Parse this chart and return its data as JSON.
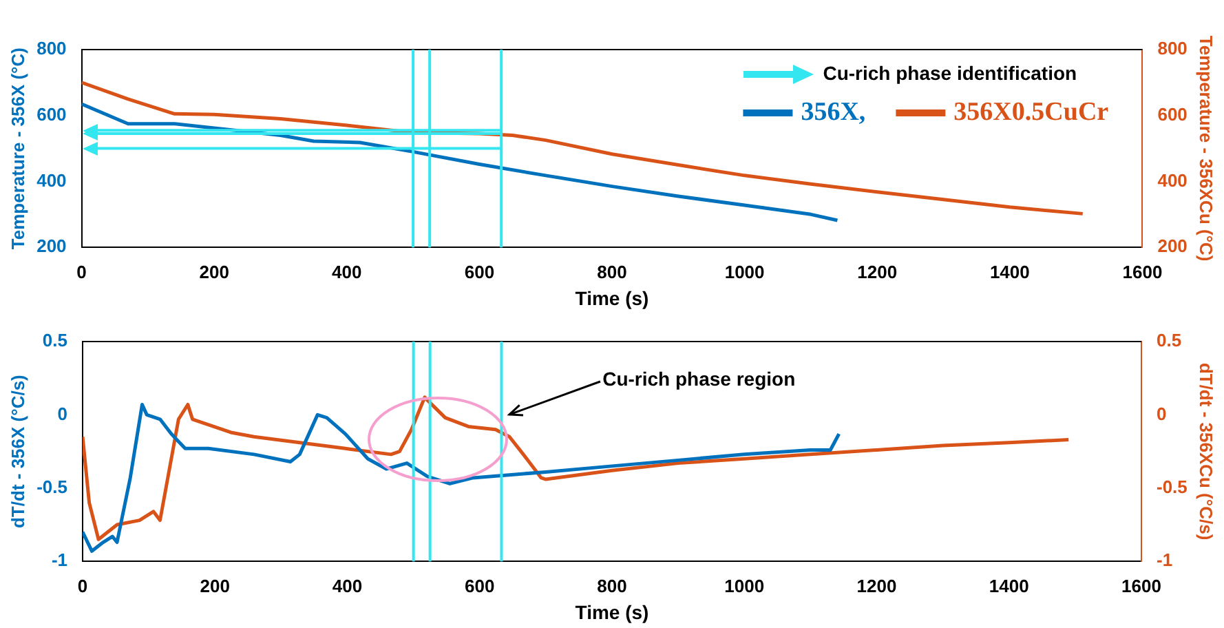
{
  "chart_data": [
    {
      "type": "line",
      "xlabel": "Time (s)",
      "ylabel": "Temperature - 356X (°C)",
      "y2label": "Temperature - 356XCu (°C)",
      "xlim": [
        0,
        1600
      ],
      "xticks": [
        0,
        200,
        400,
        600,
        800,
        1000,
        1200,
        1400,
        1600
      ],
      "ylim": [
        200,
        800
      ],
      "yticks": [
        200,
        400,
        600,
        800
      ],
      "y2lim": [
        200,
        800
      ],
      "y2ticks": [
        200,
        400,
        600,
        800
      ],
      "legend": "top right",
      "grid": false,
      "line_style": "solid",
      "series": [
        {
          "name": "356X,",
          "color": "#0072bd",
          "axis": "y",
          "x": [
            0,
            70,
            140,
            200,
            300,
            350,
            420,
            500,
            600,
            700,
            800,
            900,
            1000,
            1100,
            1140
          ],
          "values": [
            635,
            575,
            575,
            562,
            540,
            522,
            518,
            490,
            452,
            418,
            385,
            355,
            328,
            300,
            282
          ]
        },
        {
          "name": "356X0.5CuCr",
          "color": "#d95319",
          "axis": "y2",
          "x": [
            0,
            70,
            140,
            200,
            300,
            400,
            500,
            600,
            650,
            700,
            800,
            900,
            1000,
            1100,
            1200,
            1300,
            1400,
            1510
          ],
          "values": [
            700,
            650,
            605,
            603,
            590,
            570,
            548,
            545,
            540,
            525,
            483,
            450,
            418,
            392,
            368,
            345,
            322,
            302
          ]
        }
      ],
      "annotations": [
        "Cu-rich phase identification"
      ],
      "ref_lines": [
        {
          "axis": "x",
          "value": 500,
          "color": "#33e6f0"
        },
        {
          "axis": "x",
          "value": 525,
          "color": "#33e6f0"
        },
        {
          "axis": "x",
          "value": 633,
          "color": "#33e6f0"
        },
        {
          "axis": "y",
          "value": 555,
          "color": "#33e6f0"
        },
        {
          "axis": "y",
          "value": 545,
          "color": "#33e6f0"
        },
        {
          "axis": "y",
          "value": 500,
          "color": "#33e6f0"
        }
      ]
    },
    {
      "type": "line",
      "xlabel": "Time (s)",
      "ylabel": "dT/dt - 356X (°C/s)",
      "y2label": "dT/dt - 356XCu (°C/s)",
      "xlim": [
        0,
        1600
      ],
      "xticks": [
        0,
        200,
        400,
        600,
        800,
        1000,
        1200,
        1400,
        1600
      ],
      "ylim": [
        -1,
        0.5
      ],
      "yticks": [
        -1,
        -0.5,
        0,
        0.5
      ],
      "y2lim": [
        -1,
        0.5
      ],
      "y2ticks": [
        -1,
        -0.5,
        0,
        0.5
      ],
      "grid": false,
      "line_style": "solid",
      "series": [
        {
          "color": "#0072bd",
          "axis": "y",
          "x": [
            0,
            14,
            31,
            45,
            52,
            72,
            90,
            97,
            117,
            134,
            155,
            190,
            259,
            314,
            328,
            355,
            369,
            397,
            431,
            459,
            490,
            521,
            555,
            590,
            700,
            800,
            900,
            1000,
            1100,
            1130,
            1143
          ],
          "values": [
            -0.8,
            -0.93,
            -0.87,
            -0.83,
            -0.87,
            -0.43,
            0.07,
            0,
            -0.03,
            -0.13,
            -0.23,
            -0.23,
            -0.27,
            -0.32,
            -0.27,
            0,
            -0.02,
            -0.13,
            -0.3,
            -0.37,
            -0.33,
            -0.42,
            -0.47,
            -0.43,
            -0.39,
            -0.35,
            -0.31,
            -0.27,
            -0.24,
            -0.24,
            -0.13
          ]
        },
        {
          "color": "#d95319",
          "axis": "y2",
          "x": [
            0,
            10,
            24,
            52,
            86,
            107,
            117,
            145,
            159,
            166,
            172,
            224,
            259,
            328,
            397,
            466,
            479,
            497,
            517,
            521,
            548,
            583,
            624,
            645,
            666,
            693,
            700,
            800,
            900,
            1000,
            1100,
            1200,
            1300,
            1400,
            1490
          ],
          "values": [
            -0.15,
            -0.6,
            -0.85,
            -0.75,
            -0.72,
            -0.66,
            -0.72,
            -0.03,
            0.07,
            -0.03,
            -0.04,
            -0.12,
            -0.15,
            -0.19,
            -0.23,
            -0.27,
            -0.25,
            -0.1,
            0.12,
            0.1,
            -0.02,
            -0.08,
            -0.1,
            -0.15,
            -0.27,
            -0.43,
            -0.44,
            -0.38,
            -0.33,
            -0.3,
            -0.27,
            -0.24,
            -0.21,
            -0.19,
            -0.17
          ]
        }
      ],
      "ref_lines": [
        {
          "axis": "x",
          "value": 500,
          "color": "#33e6f0"
        },
        {
          "axis": "x",
          "value": 525,
          "color": "#33e6f0"
        },
        {
          "axis": "x",
          "value": 633,
          "color": "#33e6f0"
        }
      ],
      "annotations": [
        {
          "text": "Cu-rich phase region",
          "x": 640,
          "y": 0
        }
      ]
    }
  ]
}
